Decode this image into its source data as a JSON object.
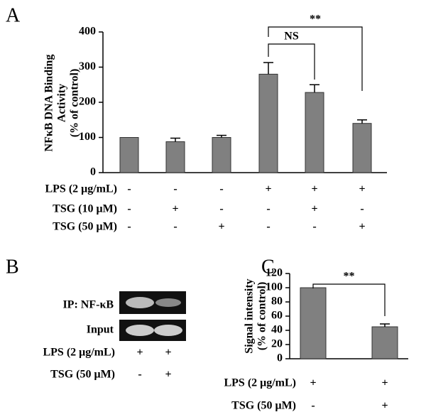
{
  "chart_data": [
    {
      "type": "bar",
      "panel": "A",
      "ylabel": [
        "NFκB DNA Binding",
        "Activity",
        "(% of control)"
      ],
      "values": [
        100,
        88,
        100,
        280,
        228,
        140
      ],
      "errors": [
        null,
        10,
        6,
        33,
        22,
        10
      ],
      "color": "#808080",
      "ylim": [
        0,
        400
      ],
      "yticks": [
        0,
        100,
        200,
        300,
        400
      ],
      "annotations": [
        "NS",
        "**"
      ],
      "conditions": [
        {
          "label": "LPS (2 μg/mL)",
          "marks": [
            "-",
            "-",
            "-",
            "+",
            "+",
            "+"
          ]
        },
        {
          "label": "TSG (10 μM)",
          "marks": [
            "-",
            "+",
            "-",
            "-",
            "+",
            "-"
          ]
        },
        {
          "label": "TSG (50 μM)",
          "marks": [
            "-",
            "-",
            "+",
            "-",
            "-",
            "+"
          ]
        }
      ]
    },
    {
      "type": "bar",
      "panel": "C",
      "ylabel": [
        "Signal intensity",
        "(% of control)"
      ],
      "values": [
        100,
        45
      ],
      "errors": [
        null,
        4
      ],
      "color": "#808080",
      "ylim": [
        0,
        120
      ],
      "yticks": [
        0,
        20,
        40,
        60,
        80,
        100,
        120
      ],
      "annotations": [
        "**"
      ],
      "conditions": [
        {
          "label": "LPS (2 μg/mL)",
          "marks": [
            "+",
            "+"
          ]
        },
        {
          "label": "TSG (50 μM)",
          "marks": [
            "-",
            "+"
          ]
        }
      ]
    }
  ],
  "panel_b": {
    "panel": "B",
    "lanes": [
      "IP: NF-κB",
      "Input"
    ],
    "conditions": [
      {
        "label": "LPS (2 μg/mL)",
        "marks": [
          "+",
          "+"
        ]
      },
      {
        "label": "TSG (50 μM)",
        "marks": [
          "-",
          "+"
        ]
      }
    ]
  }
}
